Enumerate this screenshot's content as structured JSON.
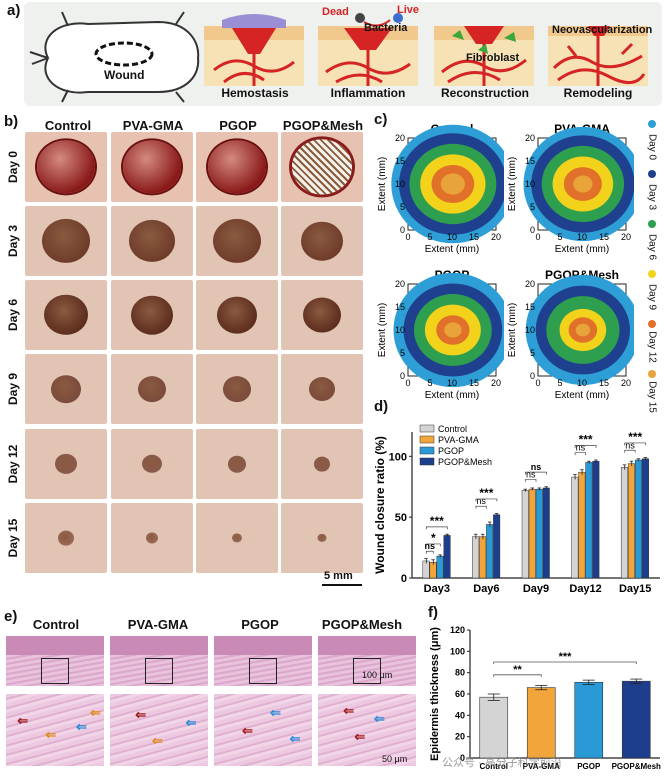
{
  "panel_a": {
    "label": "a)",
    "wound_label": "Wound",
    "stages": [
      "Hemostasis",
      "Inflammation",
      "Reconstruction",
      "Remodeling"
    ],
    "annotations": {
      "dead": "Dead",
      "live": "Live",
      "bacteria": "Bacteria",
      "fibroblast": "Fibroblast",
      "neovascularization": "Neovascularization"
    }
  },
  "panel_b": {
    "label": "b)",
    "groups": [
      "Control",
      "PVA-GMA",
      "PGOP",
      "PGOP&Mesh"
    ],
    "days": [
      "Day 0",
      "Day 3",
      "Day 6",
      "Day 9",
      "Day 12",
      "Day 15"
    ],
    "scale_bar": "5 mm"
  },
  "panel_c": {
    "label": "c)",
    "plots": [
      "Control",
      "PVA-GMA",
      "PGOP",
      "PGOP&Mesh"
    ],
    "xlabel": "Extent (mm)",
    "ylabel": "Extent (mm)",
    "ticks": [
      "0",
      "5",
      "10",
      "15",
      "20"
    ],
    "legend": [
      {
        "label": "Day 0",
        "color": "#2e9fd6"
      },
      {
        "label": "Day 3",
        "color": "#1f3f8f"
      },
      {
        "label": "Day 6",
        "color": "#2e9e4f"
      },
      {
        "label": "Day 9",
        "color": "#f2d21a"
      },
      {
        "label": "Day 12",
        "color": "#e0702a"
      },
      {
        "label": "Day 15",
        "color": "#e8a33a"
      }
    ]
  },
  "panel_d": {
    "label": "d)",
    "significance": {
      "ns": "ns",
      "single": "*",
      "triple": "***"
    }
  },
  "panel_e": {
    "label": "e)",
    "groups": [
      "Control",
      "PVA-GMA",
      "PGOP",
      "PGOP&Mesh"
    ],
    "scale_top": "100 μm",
    "scale_bottom": "50 μm"
  },
  "panel_f": {
    "label": "f)",
    "significance": {
      "double": "**",
      "triple": "***"
    }
  },
  "watermark": "公众号 · 高分子科学前沿",
  "chart_data": [
    {
      "type": "bar",
      "title": "",
      "ylabel": "Wound closure ratio (%)",
      "xlabel": "",
      "ylim": [
        0,
        120
      ],
      "yticks": [
        0,
        50,
        100
      ],
      "categories": [
        "Day3",
        "Day6",
        "Day9",
        "Day12",
        "Day15"
      ],
      "series": [
        {
          "name": "Control",
          "color": "#d4d4d4",
          "values": [
            14,
            34,
            72,
            83,
            91
          ],
          "errors": [
            2,
            2,
            1,
            2,
            2
          ]
        },
        {
          "name": "PVA-GMA",
          "color": "#f2a53a",
          "values": [
            13,
            34,
            73,
            87,
            94
          ],
          "errors": [
            2,
            2,
            1,
            2,
            2
          ]
        },
        {
          "name": "PGOP",
          "color": "#2a9ad6",
          "values": [
            18,
            44,
            73,
            95,
            97
          ],
          "errors": [
            1,
            2,
            1,
            1,
            1
          ]
        },
        {
          "name": "PGOP&Mesh",
          "color": "#1c3e8c",
          "values": [
            35,
            52,
            74,
            96,
            98
          ],
          "errors": [
            1,
            1,
            1,
            1,
            1
          ]
        }
      ]
    },
    {
      "type": "bar",
      "title": "",
      "ylabel": "Epidermis thickness (μm)",
      "xlabel": "",
      "ylim": [
        0,
        120
      ],
      "yticks": [
        0,
        20,
        40,
        60,
        80,
        100,
        120
      ],
      "categories": [
        "Control",
        "PVA-GMA",
        "PGOP",
        "PGOP&Mesh"
      ],
      "values": [
        57,
        66,
        71,
        72
      ],
      "errors": [
        3,
        2,
        2,
        2
      ],
      "colors": [
        "#d4d4d4",
        "#f2a53a",
        "#2a9ad6",
        "#1c3e8c"
      ]
    }
  ]
}
